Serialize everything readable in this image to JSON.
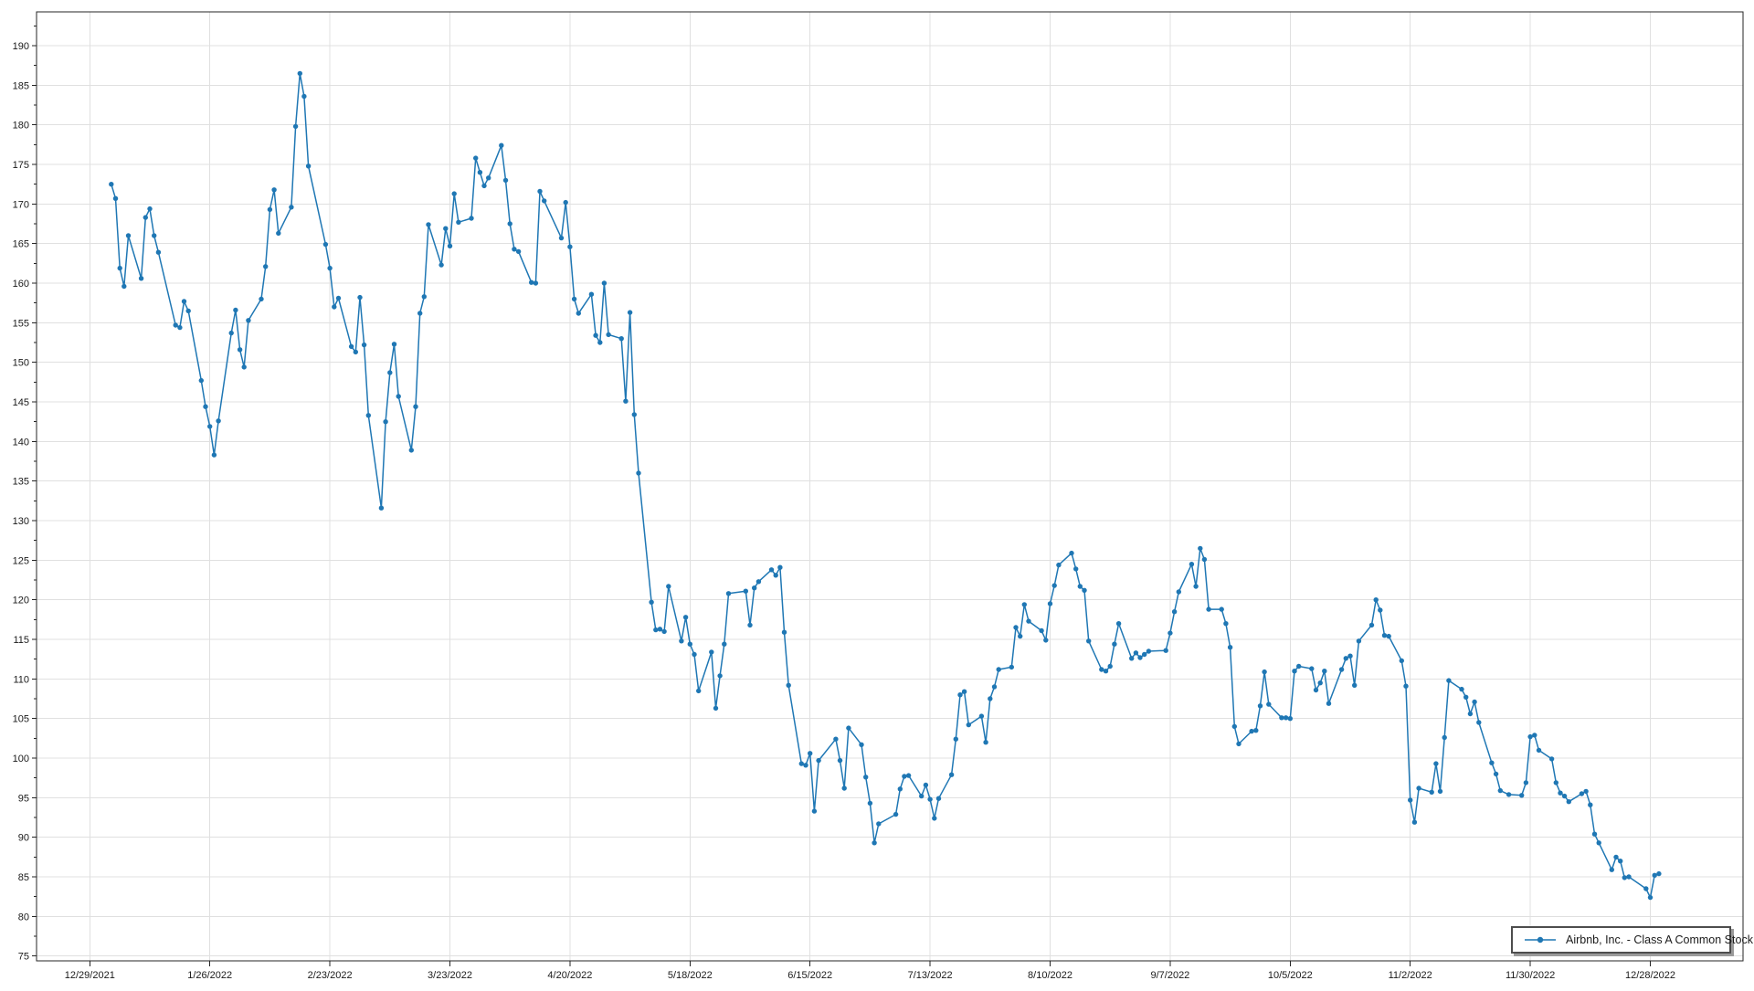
{
  "legend": {
    "label": "Airbnb, Inc. - Class A Common Stock"
  },
  "colors": {
    "series": "#1f77b4",
    "grid": "#e0e0e0",
    "axis": "#262626",
    "tick_text": "#1a1a1a",
    "background": "#ffffff",
    "legend_border": "#4d4d4d",
    "legend_shadow": "#9a9a9a"
  },
  "chart_data": {
    "type": "line",
    "title": "",
    "xlabel": "",
    "ylabel": "",
    "grid": true,
    "legend_position": "bottom-right",
    "y_axis": {
      "min": 74.4,
      "max": 194.2,
      "tick_start": 75,
      "tick_end": 190,
      "tick_step": 5,
      "minor_step": 2.5
    },
    "x_axis": {
      "anchor_date": "12/29/2021",
      "tick_interval_days": 28,
      "tick_labels": [
        "12/29/2021",
        "1/26/2022",
        "2/23/2022",
        "3/23/2022",
        "4/20/2022",
        "5/18/2022",
        "6/15/2022",
        "7/13/2022",
        "8/10/2022",
        "9/7/2022",
        "10/5/2022",
        "11/2/2022",
        "11/30/2022",
        "12/28/2022"
      ]
    },
    "series": [
      {
        "name": "Airbnb, Inc. - Class A Common Stock",
        "color": "#1f77b4",
        "points": [
          [
            "1/3/2022",
            172.5
          ],
          [
            "1/4/2022",
            170.7
          ],
          [
            "1/5/2022",
            161.9
          ],
          [
            "1/6/2022",
            159.6
          ],
          [
            "1/7/2022",
            166.0
          ],
          [
            "1/10/2022",
            160.6
          ],
          [
            "1/11/2022",
            168.3
          ],
          [
            "1/12/2022",
            169.4
          ],
          [
            "1/13/2022",
            166.0
          ],
          [
            "1/14/2022",
            163.9
          ],
          [
            "1/18/2022",
            154.7
          ],
          [
            "1/19/2022",
            154.4
          ],
          [
            "1/20/2022",
            157.7
          ],
          [
            "1/21/2022",
            156.5
          ],
          [
            "1/24/2022",
            147.7
          ],
          [
            "1/25/2022",
            144.4
          ],
          [
            "1/26/2022",
            141.9
          ],
          [
            "1/27/2022",
            138.3
          ],
          [
            "1/28/2022",
            142.6
          ],
          [
            "1/31/2022",
            153.7
          ],
          [
            "2/1/2022",
            156.6
          ],
          [
            "2/2/2022",
            151.6
          ],
          [
            "2/3/2022",
            149.4
          ],
          [
            "2/4/2022",
            155.3
          ],
          [
            "2/7/2022",
            158.0
          ],
          [
            "2/8/2022",
            162.1
          ],
          [
            "2/9/2022",
            169.3
          ],
          [
            "2/10/2022",
            171.8
          ],
          [
            "2/11/2022",
            166.3
          ],
          [
            "2/14/2022",
            169.6
          ],
          [
            "2/15/2022",
            179.8
          ],
          [
            "2/16/2022",
            186.5
          ],
          [
            "2/17/2022",
            183.6
          ],
          [
            "2/18/2022",
            174.8
          ],
          [
            "2/22/2022",
            164.9
          ],
          [
            "2/23/2022",
            161.9
          ],
          [
            "2/24/2022",
            157.0
          ],
          [
            "2/25/2022",
            158.1
          ],
          [
            "2/28/2022",
            152.0
          ],
          [
            "3/1/2022",
            151.3
          ],
          [
            "3/2/2022",
            158.2
          ],
          [
            "3/3/2022",
            152.2
          ],
          [
            "3/4/2022",
            143.3
          ],
          [
            "3/7/2022",
            131.6
          ],
          [
            "3/8/2022",
            142.5
          ],
          [
            "3/9/2022",
            148.7
          ],
          [
            "3/10/2022",
            152.3
          ],
          [
            "3/11/2022",
            145.7
          ],
          [
            "3/14/2022",
            138.9
          ],
          [
            "3/15/2022",
            144.4
          ],
          [
            "3/16/2022",
            156.2
          ],
          [
            "3/17/2022",
            158.3
          ],
          [
            "3/18/2022",
            167.4
          ],
          [
            "3/21/2022",
            162.3
          ],
          [
            "3/22/2022",
            166.9
          ],
          [
            "3/23/2022",
            164.7
          ],
          [
            "3/24/2022",
            171.3
          ],
          [
            "3/25/2022",
            167.7
          ],
          [
            "3/28/2022",
            168.2
          ],
          [
            "3/29/2022",
            175.8
          ],
          [
            "3/30/2022",
            174.0
          ],
          [
            "3/31/2022",
            172.3
          ],
          [
            "4/1/2022",
            173.3
          ],
          [
            "4/4/2022",
            177.4
          ],
          [
            "4/5/2022",
            173.0
          ],
          [
            "4/6/2022",
            167.5
          ],
          [
            "4/7/2022",
            164.3
          ],
          [
            "4/8/2022",
            164.0
          ],
          [
            "4/11/2022",
            160.1
          ],
          [
            "4/12/2022",
            160.0
          ],
          [
            "4/13/2022",
            171.6
          ],
          [
            "4/14/2022",
            170.4
          ],
          [
            "4/18/2022",
            165.7
          ],
          [
            "4/19/2022",
            170.2
          ],
          [
            "4/20/2022",
            164.6
          ],
          [
            "4/21/2022",
            158.0
          ],
          [
            "4/22/2022",
            156.2
          ],
          [
            "4/25/2022",
            158.6
          ],
          [
            "4/26/2022",
            153.4
          ],
          [
            "4/27/2022",
            152.5
          ],
          [
            "4/28/2022",
            160.0
          ],
          [
            "4/29/2022",
            153.5
          ],
          [
            "5/2/2022",
            153.0
          ],
          [
            "5/3/2022",
            145.1
          ],
          [
            "5/4/2022",
            156.3
          ],
          [
            "5/5/2022",
            143.4
          ],
          [
            "5/6/2022",
            136.0
          ],
          [
            "5/9/2022",
            119.7
          ],
          [
            "5/10/2022",
            116.2
          ],
          [
            "5/11/2022",
            116.3
          ],
          [
            "5/12/2022",
            116.0
          ],
          [
            "5/13/2022",
            121.7
          ],
          [
            "5/16/2022",
            114.8
          ],
          [
            "5/17/2022",
            117.8
          ],
          [
            "5/18/2022",
            114.4
          ],
          [
            "5/19/2022",
            113.1
          ],
          [
            "5/20/2022",
            108.5
          ],
          [
            "5/23/2022",
            113.4
          ],
          [
            "5/24/2022",
            106.3
          ],
          [
            "5/25/2022",
            110.4
          ],
          [
            "5/26/2022",
            114.4
          ],
          [
            "5/27/2022",
            120.8
          ],
          [
            "5/31/2022",
            121.1
          ],
          [
            "6/1/2022",
            116.8
          ],
          [
            "6/2/2022",
            121.5
          ],
          [
            "6/3/2022",
            122.3
          ],
          [
            "6/6/2022",
            123.8
          ],
          [
            "6/7/2022",
            123.1
          ],
          [
            "6/8/2022",
            124.1
          ],
          [
            "6/9/2022",
            115.9
          ],
          [
            "6/10/2022",
            109.2
          ],
          [
            "6/13/2022",
            99.3
          ],
          [
            "6/14/2022",
            99.1
          ],
          [
            "6/15/2022",
            100.6
          ],
          [
            "6/16/2022",
            93.3
          ],
          [
            "6/17/2022",
            99.7
          ],
          [
            "6/21/2022",
            102.4
          ],
          [
            "6/22/2022",
            99.7
          ],
          [
            "6/23/2022",
            96.2
          ],
          [
            "6/24/2022",
            103.8
          ],
          [
            "6/27/2022",
            101.7
          ],
          [
            "6/28/2022",
            97.6
          ],
          [
            "6/29/2022",
            94.3
          ],
          [
            "6/30/2022",
            89.3
          ],
          [
            "7/1/2022",
            91.7
          ],
          [
            "7/5/2022",
            92.9
          ],
          [
            "7/6/2022",
            96.1
          ],
          [
            "7/7/2022",
            97.7
          ],
          [
            "7/8/2022",
            97.8
          ],
          [
            "7/11/2022",
            95.2
          ],
          [
            "7/12/2022",
            96.6
          ],
          [
            "7/13/2022",
            94.8
          ],
          [
            "7/14/2022",
            92.4
          ],
          [
            "7/15/2022",
            94.9
          ],
          [
            "7/18/2022",
            97.9
          ],
          [
            "7/19/2022",
            102.4
          ],
          [
            "7/20/2022",
            108.0
          ],
          [
            "7/21/2022",
            108.4
          ],
          [
            "7/22/2022",
            104.2
          ],
          [
            "7/25/2022",
            105.3
          ],
          [
            "7/26/2022",
            102.0
          ],
          [
            "7/27/2022",
            107.5
          ],
          [
            "7/28/2022",
            109.0
          ],
          [
            "7/29/2022",
            111.2
          ],
          [
            "8/1/2022",
            111.5
          ],
          [
            "8/2/2022",
            116.5
          ],
          [
            "8/3/2022",
            115.4
          ],
          [
            "8/4/2022",
            119.4
          ],
          [
            "8/5/2022",
            117.3
          ],
          [
            "8/8/2022",
            116.1
          ],
          [
            "8/9/2022",
            114.9
          ],
          [
            "8/10/2022",
            119.5
          ],
          [
            "8/11/2022",
            121.8
          ],
          [
            "8/12/2022",
            124.4
          ],
          [
            "8/15/2022",
            125.9
          ],
          [
            "8/16/2022",
            123.9
          ],
          [
            "8/17/2022",
            121.7
          ],
          [
            "8/18/2022",
            121.2
          ],
          [
            "8/19/2022",
            114.8
          ],
          [
            "8/22/2022",
            111.2
          ],
          [
            "8/23/2022",
            111.0
          ],
          [
            "8/24/2022",
            111.6
          ],
          [
            "8/25/2022",
            114.4
          ],
          [
            "8/26/2022",
            117.0
          ],
          [
            "8/29/2022",
            112.6
          ],
          [
            "8/30/2022",
            113.3
          ],
          [
            "8/31/2022",
            112.7
          ],
          [
            "9/1/2022",
            113.1
          ],
          [
            "9/2/2022",
            113.5
          ],
          [
            "9/6/2022",
            113.6
          ],
          [
            "9/7/2022",
            115.8
          ],
          [
            "9/8/2022",
            118.5
          ],
          [
            "9/9/2022",
            121.0
          ],
          [
            "9/12/2022",
            124.5
          ],
          [
            "9/13/2022",
            121.7
          ],
          [
            "9/14/2022",
            126.5
          ],
          [
            "9/15/2022",
            125.1
          ],
          [
            "9/16/2022",
            118.8
          ],
          [
            "9/19/2022",
            118.8
          ],
          [
            "9/20/2022",
            117.0
          ],
          [
            "9/21/2022",
            114.0
          ],
          [
            "9/22/2022",
            104.0
          ],
          [
            "9/23/2022",
            101.8
          ],
          [
            "9/26/2022",
            103.4
          ],
          [
            "9/27/2022",
            103.5
          ],
          [
            "9/28/2022",
            106.6
          ],
          [
            "9/29/2022",
            110.9
          ],
          [
            "9/30/2022",
            106.8
          ],
          [
            "10/3/2022",
            105.1
          ],
          [
            "10/4/2022",
            105.1
          ],
          [
            "10/5/2022",
            105.0
          ],
          [
            "10/6/2022",
            111.0
          ],
          [
            "10/7/2022",
            111.6
          ],
          [
            "10/10/2022",
            111.3
          ],
          [
            "10/11/2022",
            108.6
          ],
          [
            "10/12/2022",
            109.5
          ],
          [
            "10/13/2022",
            111.0
          ],
          [
            "10/14/2022",
            106.9
          ],
          [
            "10/17/2022",
            111.2
          ],
          [
            "10/18/2022",
            112.6
          ],
          [
            "10/19/2022",
            112.9
          ],
          [
            "10/20/2022",
            109.2
          ],
          [
            "10/21/2022",
            114.8
          ],
          [
            "10/24/2022",
            116.8
          ],
          [
            "10/25/2022",
            120.0
          ],
          [
            "10/26/2022",
            118.7
          ],
          [
            "10/27/2022",
            115.5
          ],
          [
            "10/28/2022",
            115.4
          ],
          [
            "10/31/2022",
            112.3
          ],
          [
            "11/1/2022",
            109.1
          ],
          [
            "11/2/2022",
            94.7
          ],
          [
            "11/3/2022",
            91.9
          ],
          [
            "11/4/2022",
            96.2
          ],
          [
            "11/7/2022",
            95.7
          ],
          [
            "11/8/2022",
            99.3
          ],
          [
            "11/9/2022",
            95.8
          ],
          [
            "11/10/2022",
            102.6
          ],
          [
            "11/11/2022",
            109.8
          ],
          [
            "11/14/2022",
            108.7
          ],
          [
            "11/15/2022",
            107.7
          ],
          [
            "11/16/2022",
            105.6
          ],
          [
            "11/17/2022",
            107.1
          ],
          [
            "11/18/2022",
            104.5
          ],
          [
            "11/21/2022",
            99.4
          ],
          [
            "11/22/2022",
            98.0
          ],
          [
            "11/23/2022",
            95.9
          ],
          [
            "11/25/2022",
            95.4
          ],
          [
            "11/28/2022",
            95.3
          ],
          [
            "11/29/2022",
            96.9
          ],
          [
            "11/30/2022",
            102.7
          ],
          [
            "12/1/2022",
            102.9
          ],
          [
            "12/2/2022",
            101.0
          ],
          [
            "12/5/2022",
            99.9
          ],
          [
            "12/6/2022",
            96.9
          ],
          [
            "12/7/2022",
            95.6
          ],
          [
            "12/8/2022",
            95.2
          ],
          [
            "12/9/2022",
            94.5
          ],
          [
            "12/12/2022",
            95.5
          ],
          [
            "12/13/2022",
            95.8
          ],
          [
            "12/14/2022",
            94.1
          ],
          [
            "12/15/2022",
            90.4
          ],
          [
            "12/16/2022",
            89.3
          ],
          [
            "12/19/2022",
            85.9
          ],
          [
            "12/20/2022",
            87.5
          ],
          [
            "12/21/2022",
            87.0
          ],
          [
            "12/22/2022",
            84.9
          ],
          [
            "12/23/2022",
            85.0
          ],
          [
            "12/27/2022",
            83.5
          ],
          [
            "12/28/2022",
            82.4
          ],
          [
            "12/29/2022",
            85.2
          ],
          [
            "12/30/2022",
            85.4
          ]
        ]
      }
    ]
  }
}
